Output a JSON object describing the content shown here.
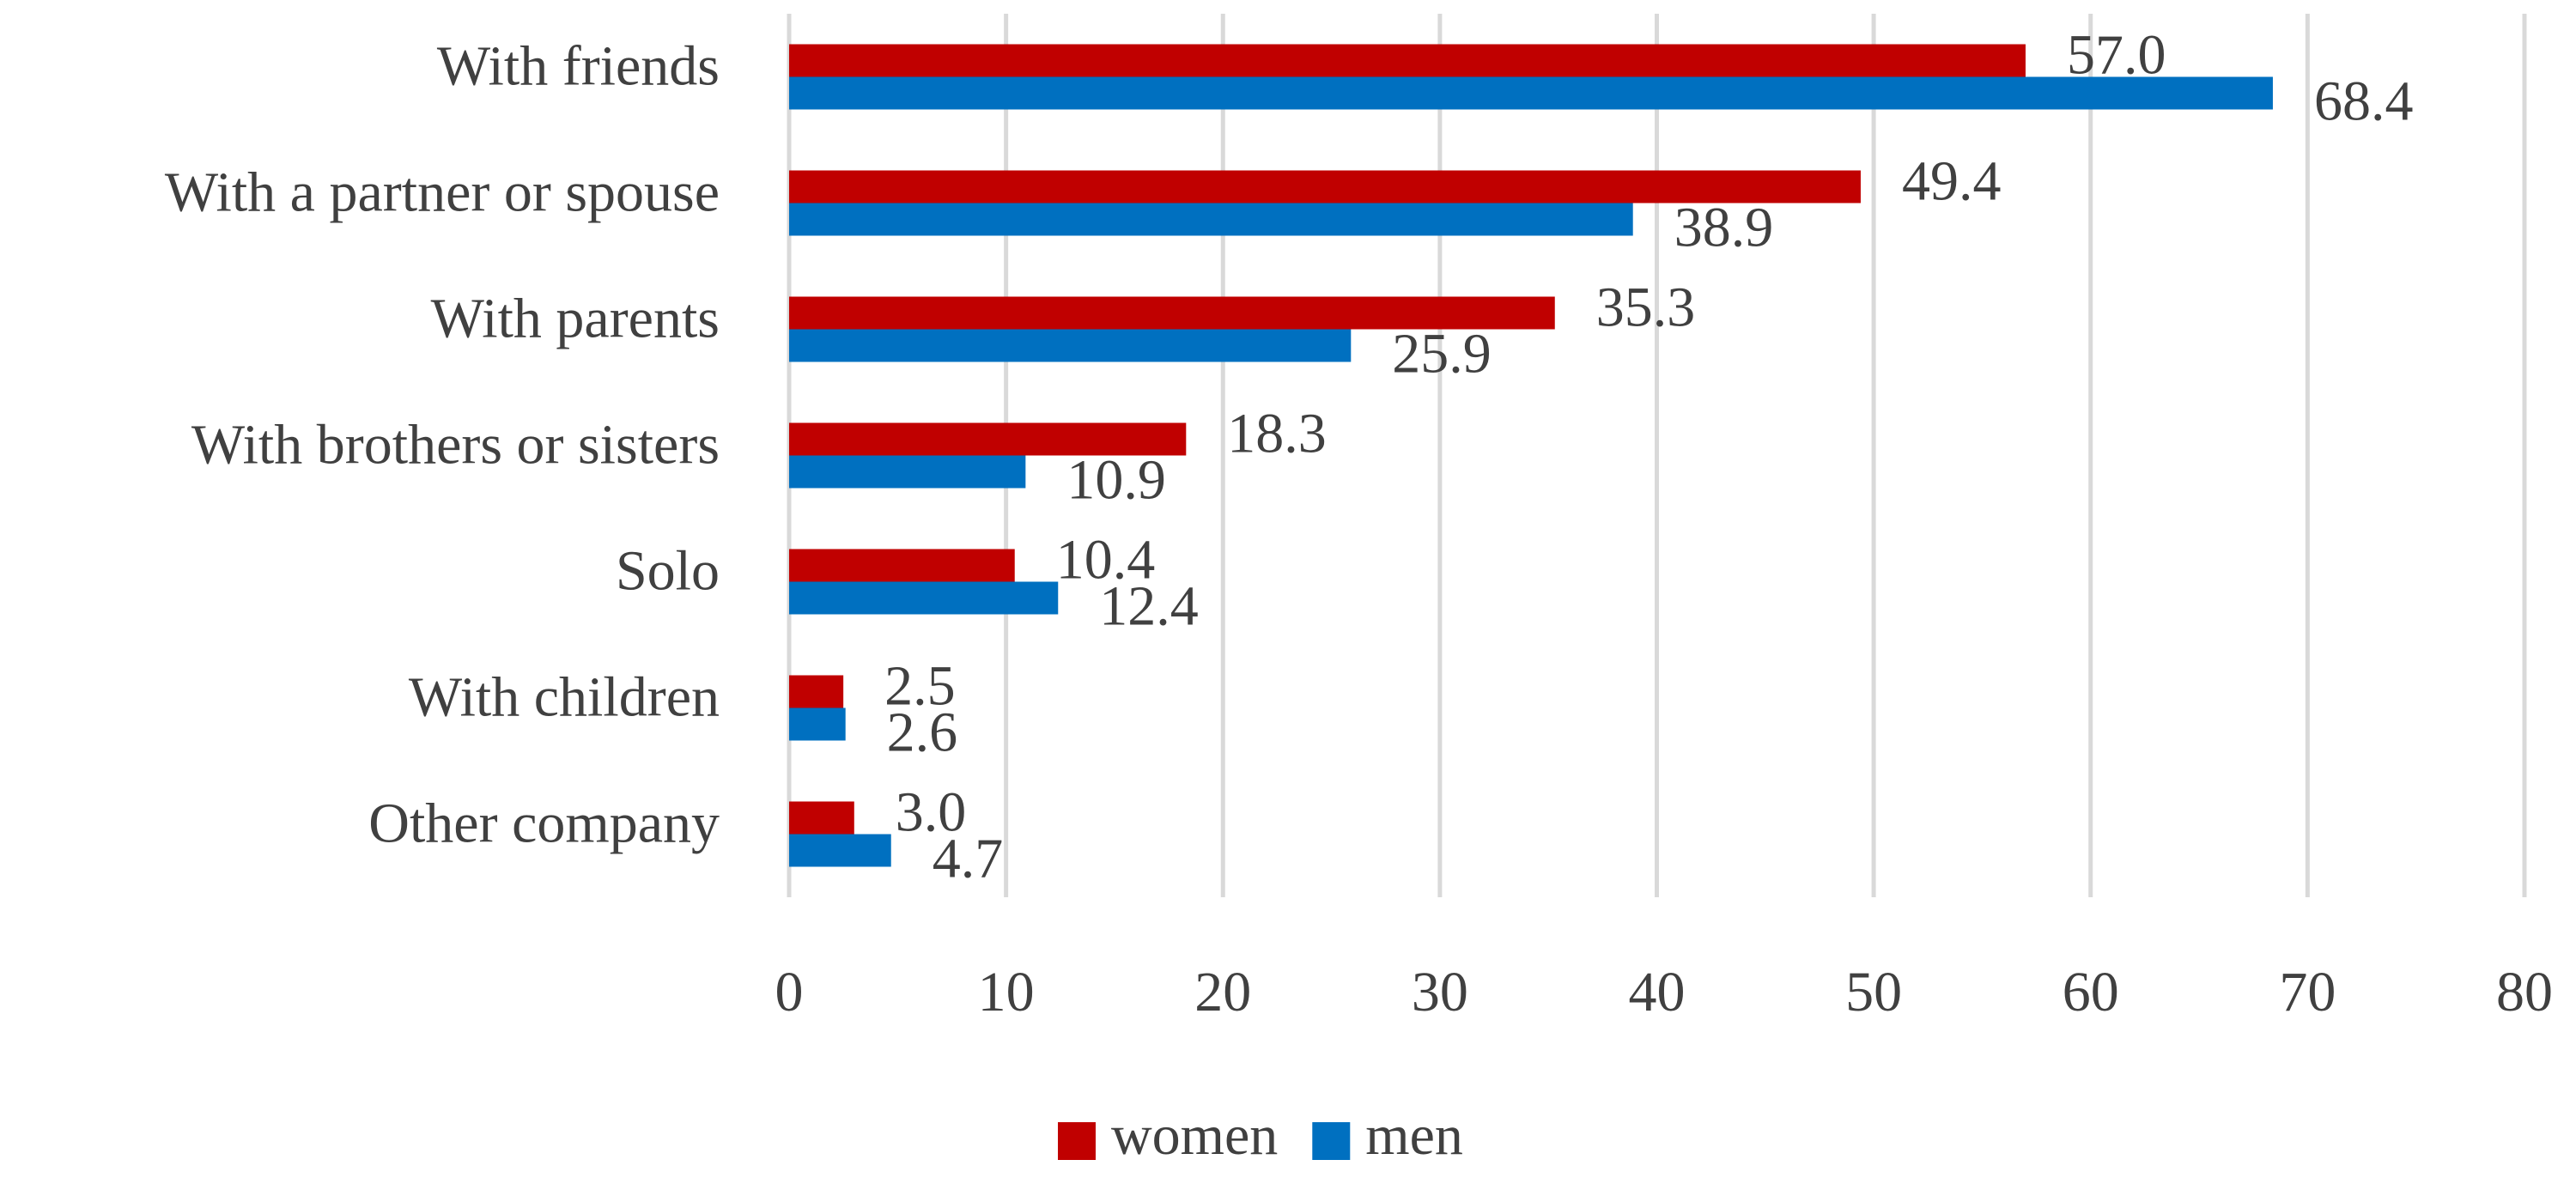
{
  "chart_data": {
    "type": "hbar",
    "categories": [
      "With friends",
      "With a partner or spouse",
      "With parents",
      "With brothers or sisters",
      "Solo",
      "With children",
      "Other company"
    ],
    "series": [
      {
        "name": "women",
        "color": "#c00000",
        "values": [
          57.0,
          49.4,
          35.3,
          18.3,
          10.4,
          2.5,
          3.0
        ],
        "value_labels": [
          "57.0",
          "49.4",
          "35.3",
          "18.3",
          "10.4",
          "2.5",
          "3.0"
        ]
      },
      {
        "name": "men",
        "color": "#0070c0",
        "values": [
          68.4,
          38.9,
          25.9,
          10.9,
          12.4,
          2.6,
          4.7
        ],
        "value_labels": [
          "68.4",
          "38.9",
          "25.9",
          "10.9",
          "12.4",
          "2.6",
          "4.7"
        ]
      }
    ],
    "xlim": [
      0,
      80
    ],
    "xticks": [
      0,
      10,
      20,
      30,
      40,
      50,
      60,
      70,
      80
    ],
    "grid": true,
    "legend": "bottom"
  }
}
